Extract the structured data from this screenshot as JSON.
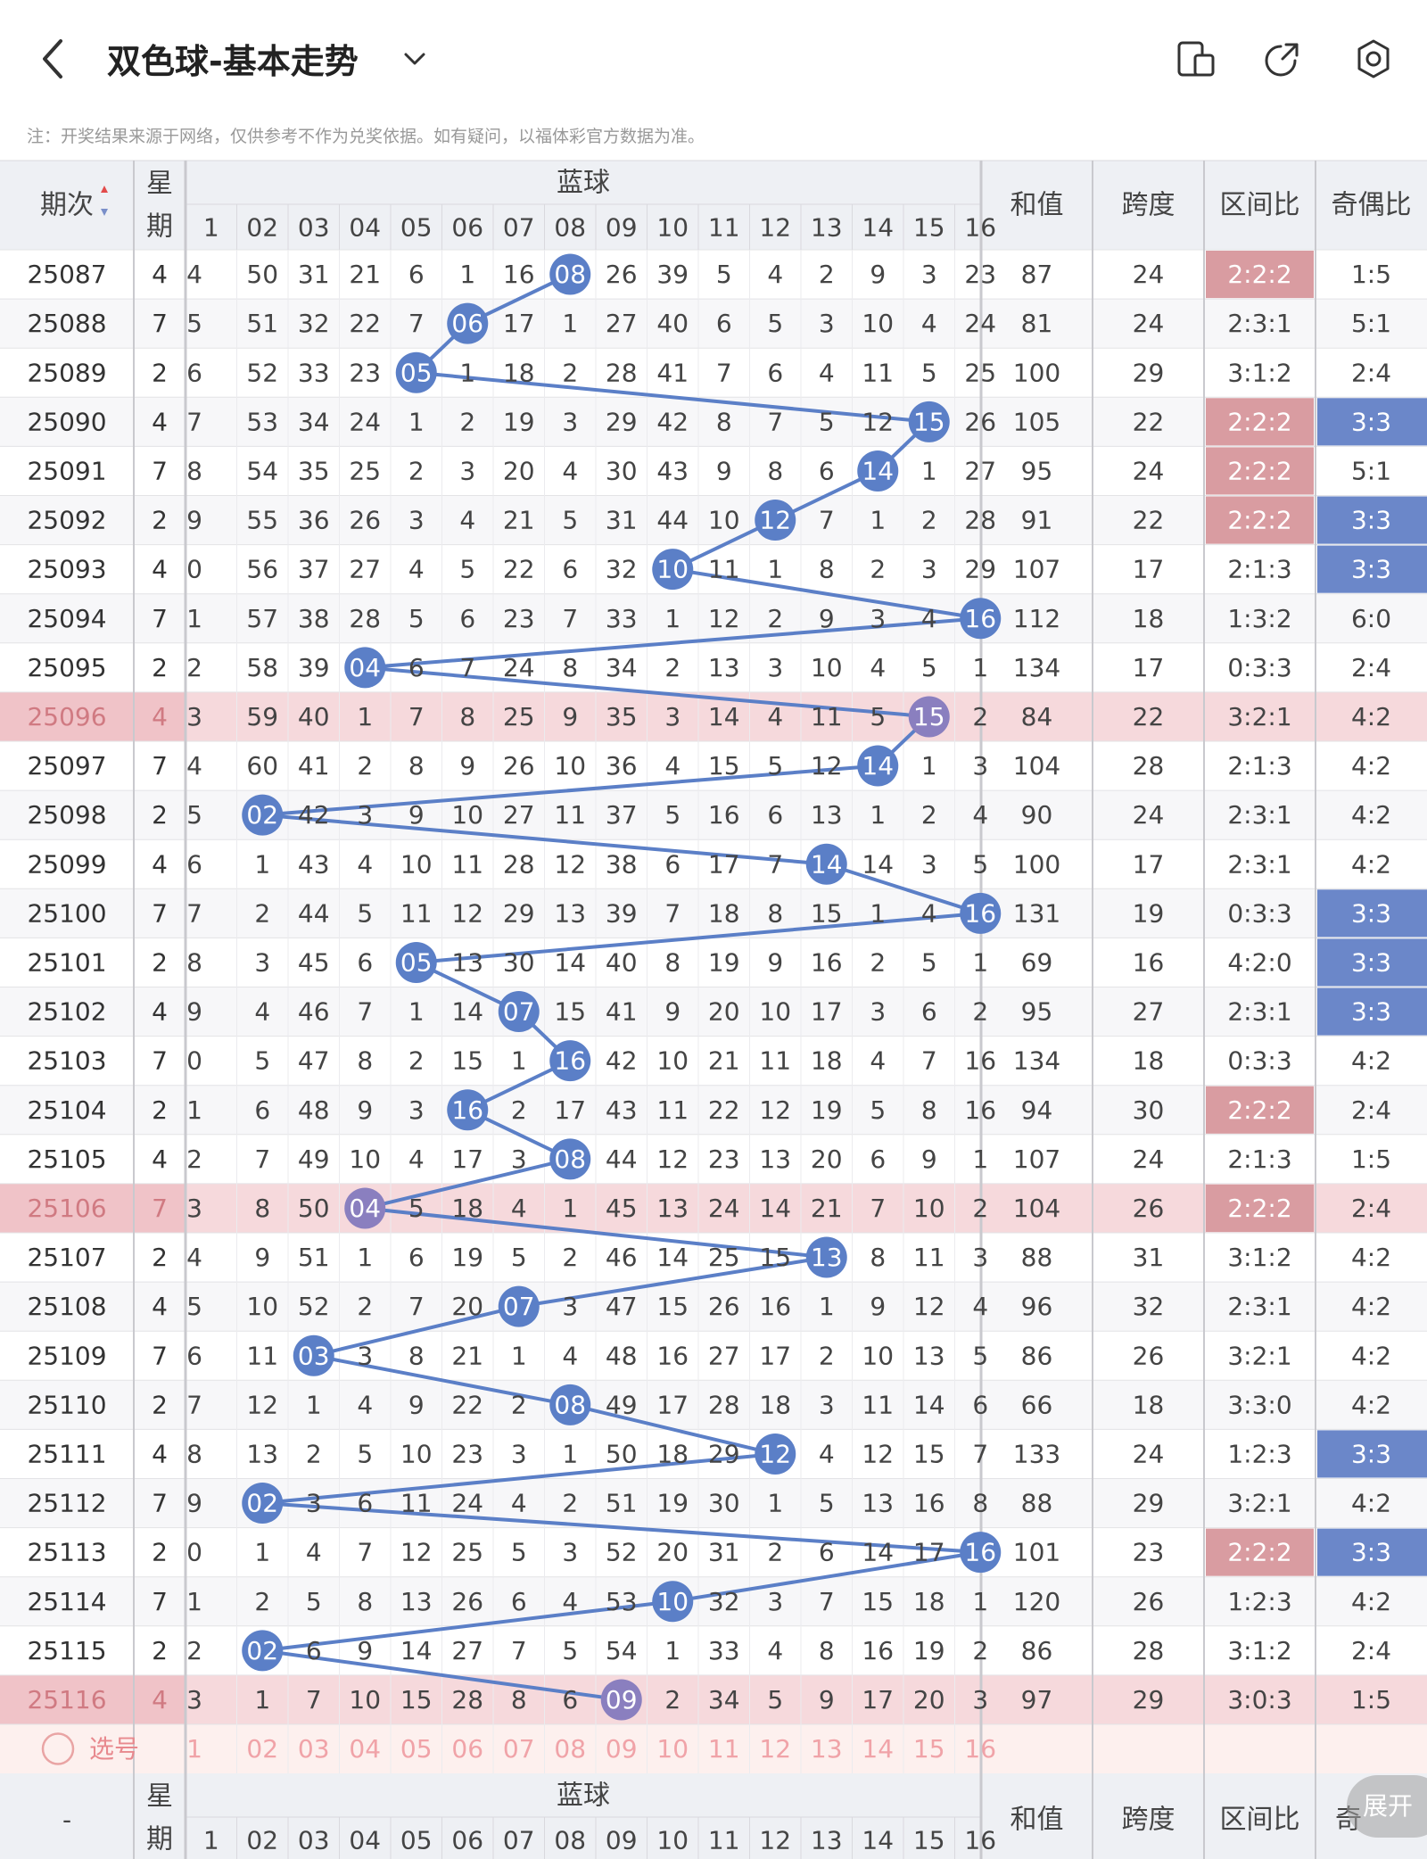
{
  "header": {
    "title": "双色球-基本走势",
    "note": "注：开奖结果来源于网络，仅供参考不作为兑奖依据。如有疑问，以福体彩官方数据为准。",
    "icons": [
      "back-arrow-icon",
      "chevron-down-icon",
      "phone-tablet-icon",
      "share-icon",
      "settings-icon"
    ]
  },
  "table": {
    "col_issue": "期次",
    "col_week": "星期",
    "col_blue": "蓝球",
    "col_sum": "和值",
    "col_span": "跨度",
    "col_zone": "区间比",
    "col_oddeven": "奇偶比",
    "blue_headers": [
      "1",
      "02",
      "03",
      "04",
      "05",
      "06",
      "07",
      "08",
      "09",
      "10",
      "11",
      "12",
      "13",
      "14",
      "15",
      "16"
    ],
    "rows": [
      {
        "issue": "25087",
        "week": "4",
        "ball": "08",
        "cells": [
          "4",
          "50",
          "31",
          "21",
          "6",
          "1",
          "16",
          "08",
          "26",
          "39",
          "5",
          "4",
          "2",
          "9",
          "3",
          "23"
        ],
        "sum": "87",
        "span": "24",
        "zone": "2:2:2",
        "oe": "1:5",
        "zone_hl": true,
        "oe_hl": false,
        "row_hl": false
      },
      {
        "issue": "25088",
        "week": "7",
        "ball": "06",
        "cells": [
          "5",
          "51",
          "32",
          "22",
          "7",
          "06",
          "17",
          "1",
          "27",
          "40",
          "6",
          "5",
          "3",
          "10",
          "4",
          "24"
        ],
        "sum": "81",
        "span": "24",
        "zone": "2:3:1",
        "oe": "5:1",
        "zone_hl": false,
        "oe_hl": false,
        "row_hl": false
      },
      {
        "issue": "25089",
        "week": "2",
        "ball": "05",
        "cells": [
          "6",
          "52",
          "33",
          "23",
          "05",
          "1",
          "18",
          "2",
          "28",
          "41",
          "7",
          "6",
          "4",
          "11",
          "5",
          "25"
        ],
        "sum": "100",
        "span": "29",
        "zone": "3:1:2",
        "oe": "2:4",
        "zone_hl": false,
        "oe_hl": false,
        "row_hl": false
      },
      {
        "issue": "25090",
        "week": "4",
        "ball": "15",
        "cells": [
          "7",
          "53",
          "34",
          "24",
          "1",
          "2",
          "19",
          "3",
          "29",
          "42",
          "8",
          "7",
          "5",
          "12",
          "15",
          "26"
        ],
        "sum": "105",
        "span": "22",
        "zone": "2:2:2",
        "oe": "3:3",
        "zone_hl": true,
        "oe_hl": true,
        "row_hl": false
      },
      {
        "issue": "25091",
        "week": "7",
        "ball": "14",
        "cells": [
          "8",
          "54",
          "35",
          "25",
          "2",
          "3",
          "20",
          "4",
          "30",
          "43",
          "9",
          "8",
          "6",
          "14",
          "1",
          "27"
        ],
        "sum": "95",
        "span": "24",
        "zone": "2:2:2",
        "oe": "5:1",
        "zone_hl": true,
        "oe_hl": false,
        "row_hl": false
      },
      {
        "issue": "25092",
        "week": "2",
        "ball": "12",
        "cells": [
          "9",
          "55",
          "36",
          "26",
          "3",
          "4",
          "21",
          "5",
          "31",
          "44",
          "10",
          "12",
          "7",
          "1",
          "2",
          "28"
        ],
        "sum": "91",
        "span": "22",
        "zone": "2:2:2",
        "oe": "3:3",
        "zone_hl": true,
        "oe_hl": true,
        "row_hl": false
      },
      {
        "issue": "25093",
        "week": "4",
        "ball": "10",
        "cells": [
          "0",
          "56",
          "37",
          "27",
          "4",
          "5",
          "22",
          "6",
          "32",
          "10",
          "11",
          "1",
          "8",
          "2",
          "3",
          "29"
        ],
        "sum": "107",
        "span": "17",
        "zone": "2:1:3",
        "oe": "3:3",
        "zone_hl": false,
        "oe_hl": true,
        "row_hl": false
      },
      {
        "issue": "25094",
        "week": "7",
        "ball": "16",
        "cells": [
          "1",
          "57",
          "38",
          "28",
          "5",
          "6",
          "23",
          "7",
          "33",
          "1",
          "12",
          "2",
          "9",
          "3",
          "4",
          "16"
        ],
        "sum": "112",
        "span": "18",
        "zone": "1:3:2",
        "oe": "6:0",
        "zone_hl": false,
        "oe_hl": false,
        "row_hl": false
      },
      {
        "issue": "25095",
        "week": "2",
        "ball": "04",
        "cells": [
          "2",
          "58",
          "39",
          "04",
          "6",
          "7",
          "24",
          "8",
          "34",
          "2",
          "13",
          "3",
          "10",
          "4",
          "5",
          "1"
        ],
        "sum": "134",
        "span": "17",
        "zone": "0:3:3",
        "oe": "2:4",
        "zone_hl": false,
        "oe_hl": false,
        "row_hl": false
      },
      {
        "issue": "25096",
        "week": "4",
        "ball": "15",
        "cells": [
          "3",
          "59",
          "40",
          "1",
          "7",
          "8",
          "25",
          "9",
          "35",
          "3",
          "14",
          "4",
          "11",
          "5",
          "15",
          "2"
        ],
        "sum": "84",
        "span": "22",
        "zone": "3:2:1",
        "oe": "4:2",
        "zone_hl": false,
        "oe_hl": false,
        "row_hl": true
      },
      {
        "issue": "25097",
        "week": "7",
        "ball": "14",
        "cells": [
          "4",
          "60",
          "41",
          "2",
          "8",
          "9",
          "26",
          "10",
          "36",
          "4",
          "15",
          "5",
          "12",
          "14",
          "1",
          "3"
        ],
        "sum": "104",
        "span": "28",
        "zone": "2:1:3",
        "oe": "4:2",
        "zone_hl": false,
        "oe_hl": false,
        "row_hl": false
      },
      {
        "issue": "25098",
        "week": "2",
        "ball": "02",
        "cells": [
          "5",
          "02",
          "42",
          "3",
          "9",
          "10",
          "27",
          "11",
          "37",
          "5",
          "16",
          "6",
          "13",
          "1",
          "2",
          "4"
        ],
        "sum": "90",
        "span": "24",
        "zone": "2:3:1",
        "oe": "4:2",
        "zone_hl": false,
        "oe_hl": false,
        "row_hl": false
      },
      {
        "issue": "25099",
        "week": "4",
        "ball": "14",
        "cells": [
          "6",
          "1",
          "43",
          "4",
          "10",
          "11",
          "28",
          "12",
          "38",
          "6",
          "17",
          "7",
          "14",
          "14",
          "3",
          "5"
        ],
        "sum": "100",
        "span": "17",
        "zone": "2:3:1",
        "oe": "4:2",
        "zone_hl": false,
        "oe_hl": false,
        "row_hl": false
      },
      {
        "issue": "25100",
        "week": "7",
        "ball": "16",
        "cells": [
          "7",
          "2",
          "44",
          "5",
          "11",
          "12",
          "29",
          "13",
          "39",
          "7",
          "18",
          "8",
          "15",
          "1",
          "4",
          "16"
        ],
        "sum": "131",
        "span": "19",
        "zone": "0:3:3",
        "oe": "3:3",
        "zone_hl": false,
        "oe_hl": true,
        "row_hl": false
      },
      {
        "issue": "25101",
        "week": "2",
        "ball": "05",
        "cells": [
          "8",
          "3",
          "45",
          "6",
          "05",
          "13",
          "30",
          "14",
          "40",
          "8",
          "19",
          "9",
          "16",
          "2",
          "5",
          "1"
        ],
        "sum": "69",
        "span": "16",
        "zone": "4:2:0",
        "oe": "3:3",
        "zone_hl": false,
        "oe_hl": true,
        "row_hl": false
      },
      {
        "issue": "25102",
        "week": "4",
        "ball": "07",
        "cells": [
          "9",
          "4",
          "46",
          "7",
          "1",
          "14",
          "07",
          "15",
          "41",
          "9",
          "20",
          "10",
          "17",
          "3",
          "6",
          "2"
        ],
        "sum": "95",
        "span": "27",
        "zone": "2:3:1",
        "oe": "3:3",
        "zone_hl": false,
        "oe_hl": true,
        "row_hl": false
      },
      {
        "issue": "25103",
        "week": "7",
        "ball": "16",
        "cells": [
          "0",
          "5",
          "47",
          "8",
          "2",
          "15",
          "1",
          "16",
          "42",
          "10",
          "21",
          "11",
          "18",
          "4",
          "7",
          "16"
        ],
        "sum": "134",
        "span": "18",
        "zone": "0:3:3",
        "oe": "4:2",
        "zone_hl": false,
        "oe_hl": false,
        "row_hl": false
      },
      {
        "issue": "25104",
        "week": "2",
        "ball": "16",
        "cells": [
          "1",
          "6",
          "48",
          "9",
          "3",
          "16",
          "2",
          "17",
          "43",
          "11",
          "22",
          "12",
          "19",
          "5",
          "8",
          "16"
        ],
        "sum": "94",
        "span": "30",
        "zone": "2:2:2",
        "oe": "2:4",
        "zone_hl": true,
        "oe_hl": false,
        "row_hl": false
      },
      {
        "issue": "25105",
        "week": "4",
        "ball": "08",
        "cells": [
          "2",
          "7",
          "49",
          "10",
          "4",
          "17",
          "3",
          "08",
          "44",
          "12",
          "23",
          "13",
          "20",
          "6",
          "9",
          "1"
        ],
        "sum": "107",
        "span": "24",
        "zone": "2:1:3",
        "oe": "1:5",
        "zone_hl": false,
        "oe_hl": false,
        "row_hl": false
      },
      {
        "issue": "25106",
        "week": "7",
        "ball": "04",
        "cells": [
          "3",
          "8",
          "50",
          "04",
          "5",
          "18",
          "4",
          "1",
          "45",
          "13",
          "24",
          "14",
          "21",
          "7",
          "10",
          "2"
        ],
        "sum": "104",
        "span": "26",
        "zone": "2:2:2",
        "oe": "2:4",
        "zone_hl": true,
        "oe_hl": false,
        "row_hl": true
      },
      {
        "issue": "25107",
        "week": "2",
        "ball": "13",
        "cells": [
          "4",
          "9",
          "51",
          "1",
          "6",
          "19",
          "5",
          "2",
          "46",
          "14",
          "25",
          "15",
          "13",
          "8",
          "11",
          "3"
        ],
        "sum": "88",
        "span": "31",
        "zone": "3:1:2",
        "oe": "4:2",
        "zone_hl": false,
        "oe_hl": false,
        "row_hl": false
      },
      {
        "issue": "25108",
        "week": "4",
        "ball": "07",
        "cells": [
          "5",
          "10",
          "52",
          "2",
          "7",
          "20",
          "07",
          "3",
          "47",
          "15",
          "26",
          "16",
          "1",
          "9",
          "12",
          "4"
        ],
        "sum": "96",
        "span": "32",
        "zone": "2:3:1",
        "oe": "4:2",
        "zone_hl": false,
        "oe_hl": false,
        "row_hl": false
      },
      {
        "issue": "25109",
        "week": "7",
        "ball": "03",
        "cells": [
          "6",
          "11",
          "03",
          "3",
          "8",
          "21",
          "1",
          "4",
          "48",
          "16",
          "27",
          "17",
          "2",
          "10",
          "13",
          "5"
        ],
        "sum": "86",
        "span": "26",
        "zone": "3:2:1",
        "oe": "4:2",
        "zone_hl": false,
        "oe_hl": false,
        "row_hl": false
      },
      {
        "issue": "25110",
        "week": "2",
        "ball": "08",
        "cells": [
          "7",
          "12",
          "1",
          "4",
          "9",
          "22",
          "2",
          "08",
          "49",
          "17",
          "28",
          "18",
          "3",
          "11",
          "14",
          "6"
        ],
        "sum": "66",
        "span": "18",
        "zone": "3:3:0",
        "oe": "4:2",
        "zone_hl": false,
        "oe_hl": false,
        "row_hl": false
      },
      {
        "issue": "25111",
        "week": "4",
        "ball": "12",
        "cells": [
          "8",
          "13",
          "2",
          "5",
          "10",
          "23",
          "3",
          "1",
          "50",
          "18",
          "29",
          "12",
          "4",
          "12",
          "15",
          "7"
        ],
        "sum": "133",
        "span": "24",
        "zone": "1:2:3",
        "oe": "3:3",
        "zone_hl": false,
        "oe_hl": true,
        "row_hl": false
      },
      {
        "issue": "25112",
        "week": "7",
        "ball": "02",
        "cells": [
          "9",
          "02",
          "3",
          "6",
          "11",
          "24",
          "4",
          "2",
          "51",
          "19",
          "30",
          "1",
          "5",
          "13",
          "16",
          "8"
        ],
        "sum": "88",
        "span": "29",
        "zone": "3:2:1",
        "oe": "4:2",
        "zone_hl": false,
        "oe_hl": false,
        "row_hl": false
      },
      {
        "issue": "25113",
        "week": "2",
        "ball": "16",
        "cells": [
          "0",
          "1",
          "4",
          "7",
          "12",
          "25",
          "5",
          "3",
          "52",
          "20",
          "31",
          "2",
          "6",
          "14",
          "17",
          "16"
        ],
        "sum": "101",
        "span": "23",
        "zone": "2:2:2",
        "oe": "3:3",
        "zone_hl": true,
        "oe_hl": true,
        "row_hl": false
      },
      {
        "issue": "25114",
        "week": "7",
        "ball": "10",
        "cells": [
          "1",
          "2",
          "5",
          "8",
          "13",
          "26",
          "6",
          "4",
          "53",
          "10",
          "32",
          "3",
          "7",
          "15",
          "18",
          "1"
        ],
        "sum": "120",
        "span": "26",
        "zone": "1:2:3",
        "oe": "4:2",
        "zone_hl": false,
        "oe_hl": false,
        "row_hl": false
      },
      {
        "issue": "25115",
        "week": "2",
        "ball": "02",
        "cells": [
          "2",
          "02",
          "6",
          "9",
          "14",
          "27",
          "7",
          "5",
          "54",
          "1",
          "33",
          "4",
          "8",
          "16",
          "19",
          "2"
        ],
        "sum": "86",
        "span": "28",
        "zone": "3:1:2",
        "oe": "2:4",
        "zone_hl": false,
        "oe_hl": false,
        "row_hl": false
      },
      {
        "issue": "25116",
        "week": "4",
        "ball": "09",
        "cells": [
          "3",
          "1",
          "7",
          "10",
          "15",
          "28",
          "8",
          "6",
          "09",
          "2",
          "34",
          "5",
          "9",
          "17",
          "20",
          "3"
        ],
        "sum": "97",
        "span": "29",
        "zone": "3:0:3",
        "oe": "1:5",
        "zone_hl": false,
        "oe_hl": false,
        "row_hl": true
      }
    ],
    "select_label": "选号",
    "select_numbers": [
      "1",
      "02",
      "03",
      "04",
      "05",
      "06",
      "07",
      "08",
      "09",
      "10",
      "11",
      "12",
      "13",
      "14",
      "15",
      "16"
    ],
    "footer_dash": "-",
    "footer_oddeven_partial": "奇",
    "expand_label": "展开"
  },
  "colors": {
    "ball": "#5b7fc7",
    "ball_highlight_row": "#8a7fbf",
    "zone_highlight": "#d99ca1",
    "oe_highlight": "#6b87c9",
    "row_highlight": "#f6d9dc",
    "select_bg": "#fdf0ee",
    "header_bg": "#eef0f4"
  }
}
